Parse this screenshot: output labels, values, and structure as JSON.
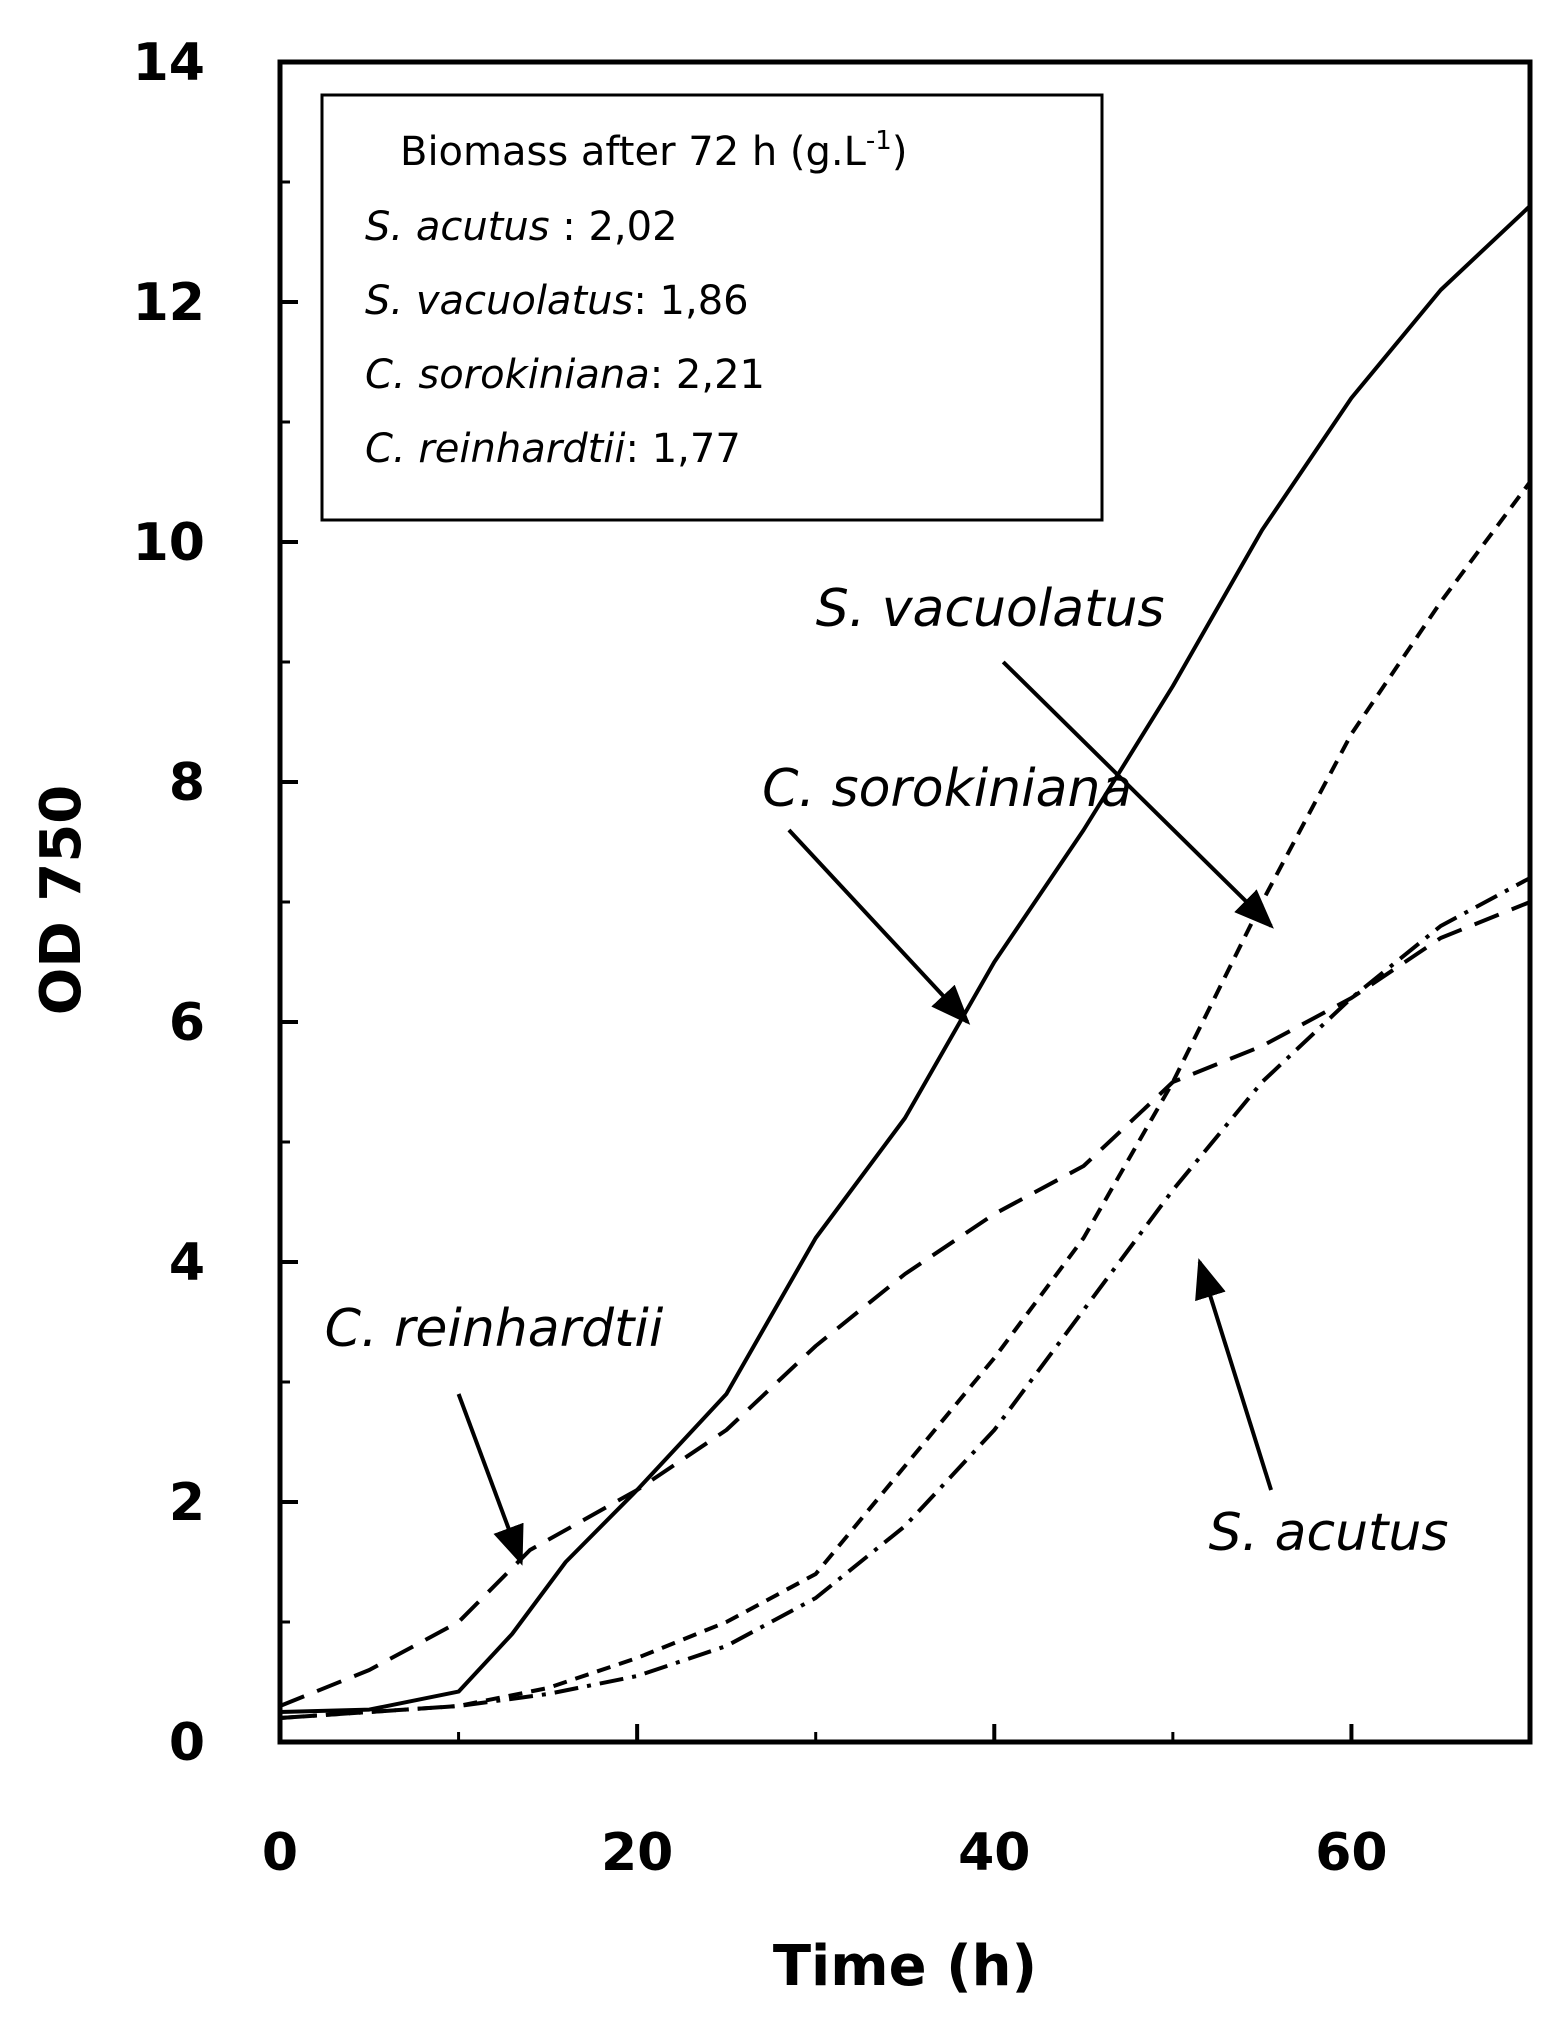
{
  "chart_data": {
    "type": "line",
    "xlabel": "Time (h)",
    "ylabel": "OD 750",
    "xlim": [
      0,
      70
    ],
    "ylim": [
      0,
      14
    ],
    "x_ticks": [
      "0",
      "20",
      "40",
      "60"
    ],
    "y_ticks": [
      "0",
      "2",
      "4",
      "6",
      "8",
      "10",
      "12",
      "14"
    ],
    "grid": false,
    "series": [
      {
        "name": "C. sorokiniana",
        "line_style": "solid",
        "points": [
          [
            0,
            0.25
          ],
          [
            5,
            0.27
          ],
          [
            10,
            0.42
          ],
          [
            13,
            0.9
          ],
          [
            16,
            1.5
          ],
          [
            20,
            2.1
          ],
          [
            25,
            2.9
          ],
          [
            30,
            4.2
          ],
          [
            35,
            5.2
          ],
          [
            40,
            6.5
          ],
          [
            45,
            7.6
          ],
          [
            50,
            8.8
          ],
          [
            55,
            10.1
          ],
          [
            60,
            11.2
          ],
          [
            65,
            12.1
          ],
          [
            70,
            12.8
          ]
        ]
      },
      {
        "name": "S. vacuolatus",
        "line_style": "dashed",
        "points": [
          [
            0,
            0.2
          ],
          [
            10,
            0.3
          ],
          [
            15,
            0.45
          ],
          [
            20,
            0.7
          ],
          [
            25,
            1.0
          ],
          [
            30,
            1.4
          ],
          [
            35,
            2.3
          ],
          [
            40,
            3.2
          ],
          [
            45,
            4.2
          ],
          [
            50,
            5.5
          ],
          [
            55,
            7.0
          ],
          [
            60,
            8.4
          ],
          [
            65,
            9.5
          ],
          [
            70,
            10.5
          ]
        ]
      },
      {
        "name": "S. acutus",
        "line_style": "dash-dot",
        "points": [
          [
            0,
            0.2
          ],
          [
            10,
            0.3
          ],
          [
            15,
            0.4
          ],
          [
            20,
            0.55
          ],
          [
            25,
            0.8
          ],
          [
            30,
            1.2
          ],
          [
            35,
            1.8
          ],
          [
            40,
            2.6
          ],
          [
            45,
            3.6
          ],
          [
            50,
            4.6
          ],
          [
            55,
            5.5
          ],
          [
            60,
            6.2
          ],
          [
            65,
            6.8
          ],
          [
            70,
            7.2
          ]
        ]
      },
      {
        "name": "C. reinhardtii",
        "line_style": "long-dash",
        "points": [
          [
            0,
            0.3
          ],
          [
            5,
            0.6
          ],
          [
            10,
            1.0
          ],
          [
            14,
            1.6
          ],
          [
            20,
            2.1
          ],
          [
            25,
            2.6
          ],
          [
            30,
            3.3
          ],
          [
            35,
            3.9
          ],
          [
            40,
            4.4
          ],
          [
            45,
            4.8
          ],
          [
            50,
            5.5
          ],
          [
            55,
            5.8
          ],
          [
            60,
            6.2
          ],
          [
            65,
            6.7
          ],
          [
            70,
            7.0
          ]
        ]
      }
    ],
    "annotations": [
      {
        "text": "S. vacuolatus",
        "label_at": [
          30,
          9.3
        ],
        "arrow_from": [
          40.5,
          9.0
        ],
        "arrow_to": [
          55.5,
          6.8
        ]
      },
      {
        "text": "C. sorokiniana",
        "label_at": [
          27,
          7.8
        ],
        "arrow_from": [
          28.5,
          7.6
        ],
        "arrow_to": [
          38.5,
          6.0
        ]
      },
      {
        "text": "C. reinhardtii",
        "label_at": [
          2.5,
          3.3
        ],
        "arrow_from": [
          10,
          2.9
        ],
        "arrow_to": [
          13.5,
          1.5
        ]
      },
      {
        "text": "S. acutus",
        "label_at": [
          52,
          1.6
        ],
        "arrow_from": [
          55.5,
          2.1
        ],
        "arrow_to": [
          51.5,
          4.0
        ]
      }
    ],
    "info_box": {
      "title_main": "Biomass after 72 h (g.L",
      "title_sup": "-1",
      "title_end": ")",
      "rows": [
        {
          "species": "S. acutus",
          "sep": " : ",
          "value": "2,02"
        },
        {
          "species": "S. vacuolatus",
          "sep": ": ",
          "value": "1,86"
        },
        {
          "species": "C. sorokiniana",
          "sep": ":  ",
          "value": "2,21"
        },
        {
          "species": "C. reinhardtii",
          "sep": ":  ",
          "value": "1,77"
        }
      ]
    }
  }
}
